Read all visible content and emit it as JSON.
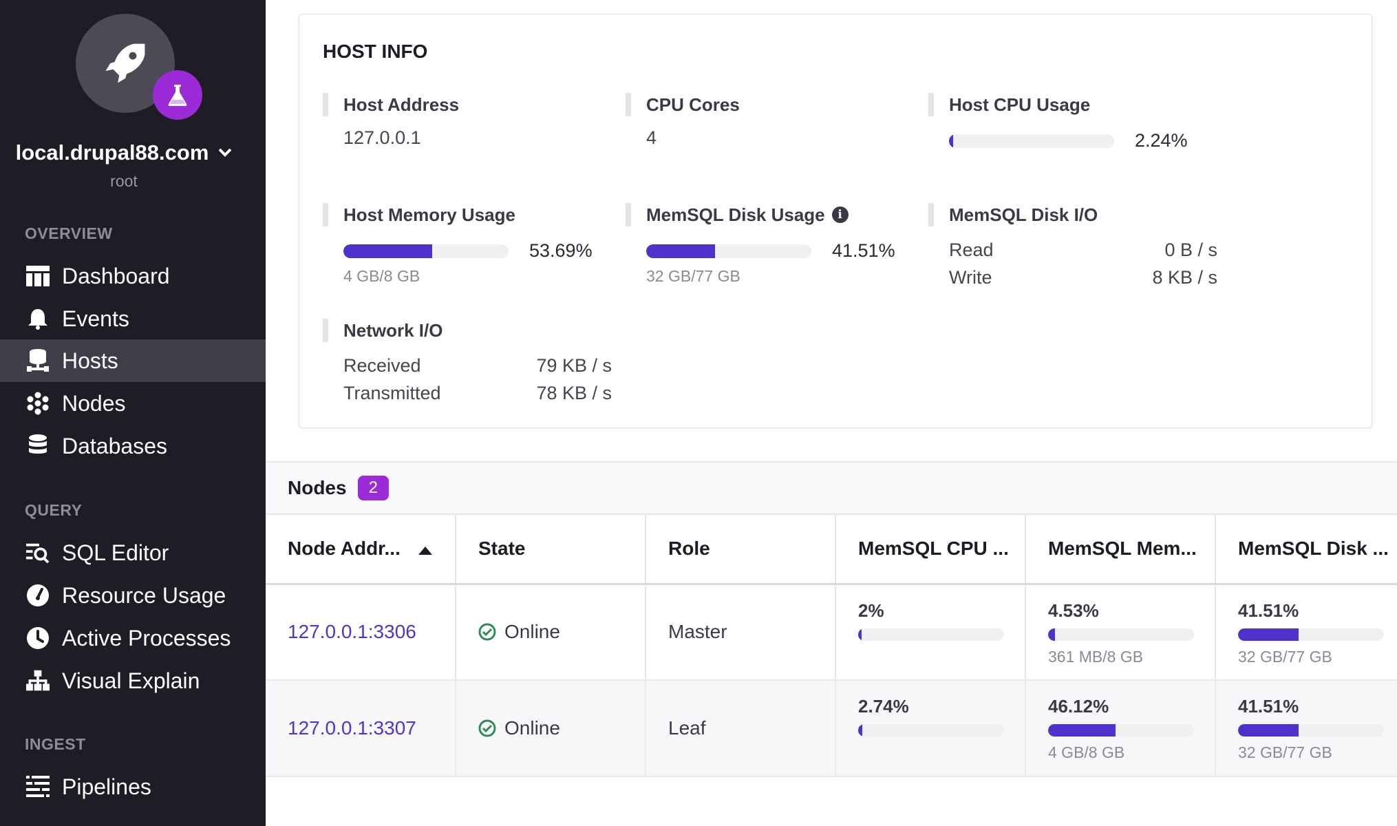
{
  "sidebar": {
    "host_name": "local.drupal88.com",
    "user": "root",
    "sections": [
      {
        "label": "OVERVIEW",
        "items": [
          "Dashboard",
          "Events",
          "Hosts",
          "Nodes",
          "Databases"
        ]
      },
      {
        "label": "QUERY",
        "items": [
          "SQL Editor",
          "Resource Usage",
          "Active Processes",
          "Visual Explain"
        ]
      },
      {
        "label": "INGEST",
        "items": [
          "Pipelines"
        ]
      }
    ],
    "active_item": "Hosts",
    "colors": {
      "background": "#1e1d26",
      "active": "#3f3e48",
      "badge": "#9a2bd7"
    }
  },
  "host_info": {
    "title": "HOST INFO",
    "host_address": {
      "label": "Host Address",
      "value": "127.0.0.1"
    },
    "cpu_cores": {
      "label": "CPU Cores",
      "value": "4"
    },
    "host_cpu_usage": {
      "label": "Host CPU Usage",
      "percent": "2.24%",
      "fraction": 0.0224
    },
    "host_memory_usage": {
      "label": "Host Memory Usage",
      "percent": "53.69%",
      "fraction": 0.5369,
      "detail": "4 GB/8 GB"
    },
    "memsql_disk_usage": {
      "label": "MemSQL Disk Usage",
      "percent": "41.51%",
      "fraction": 0.4151,
      "detail": "32 GB/77 GB"
    },
    "memsql_disk_io": {
      "label": "MemSQL Disk I/O",
      "read_label": "Read",
      "read_value": "0 B / s",
      "write_label": "Write",
      "write_value": "8 KB / s"
    },
    "network_io": {
      "label": "Network I/O",
      "received_label": "Received",
      "received_value": "79 KB / s",
      "transmitted_label": "Transmitted",
      "transmitted_value": "78 KB / s"
    }
  },
  "nodes": {
    "title": "Nodes",
    "count": "2",
    "columns": [
      "Node Addr...",
      "State",
      "Role",
      "MemSQL CPU ...",
      "MemSQL Mem...",
      "MemSQL Disk ..."
    ],
    "rows": [
      {
        "address": "127.0.0.1:3306",
        "state": "Online",
        "role": "Master",
        "cpu": {
          "percent": "2%",
          "fraction": 0.02
        },
        "mem": {
          "percent": "4.53%",
          "fraction": 0.0453,
          "detail": "361 MB/8 GB"
        },
        "disk": {
          "percent": "41.51%",
          "fraction": 0.4151,
          "detail": "32 GB/77 GB"
        }
      },
      {
        "address": "127.0.0.1:3307",
        "state": "Online",
        "role": "Leaf",
        "cpu": {
          "percent": "2.74%",
          "fraction": 0.0274
        },
        "mem": {
          "percent": "46.12%",
          "fraction": 0.4612,
          "detail": "4 GB/8 GB"
        },
        "disk": {
          "percent": "41.51%",
          "fraction": 0.4151,
          "detail": "32 GB/77 GB"
        }
      }
    ]
  },
  "colors": {
    "accent": "#4f31cc",
    "link": "#4b37c9",
    "online": "#2e8b57"
  }
}
